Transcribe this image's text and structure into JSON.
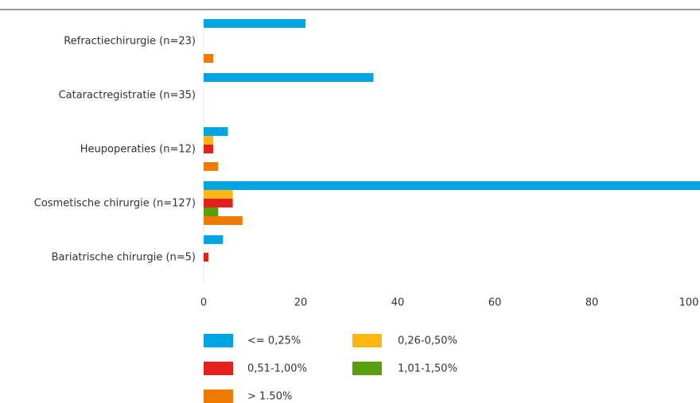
{
  "chart_data": {
    "type": "hbar",
    "categories": [
      "Refractiechirurgie (n=23)",
      "Cataractregistratie (n=35)",
      "Heupoperaties (n=12)",
      "Cosmetische chirurgie (n=127)",
      "Bariatrische chirurgie (n=5)"
    ],
    "series": [
      {
        "name": "<= 0,25%",
        "color": "#00a6e2",
        "values": [
          21,
          35,
          5,
          104,
          4
        ]
      },
      {
        "name": "0,26-0,50%",
        "color": "#ffb612",
        "values": [
          0,
          0,
          2,
          6,
          0
        ]
      },
      {
        "name": "0,51-1,00%",
        "color": "#e3211c",
        "values": [
          0,
          0,
          2,
          6,
          1
        ]
      },
      {
        "name": "1,01-1,50%",
        "color": "#5a9e0f",
        "values": [
          0,
          0,
          0,
          3,
          0
        ]
      },
      {
        "name": "> 1.50%",
        "color": "#ef7a00",
        "values": [
          2,
          0,
          3,
          8,
          0
        ]
      }
    ],
    "xlim": [
      0,
      100
    ],
    "xticks": [
      0,
      20,
      40,
      60,
      80,
      100
    ]
  }
}
